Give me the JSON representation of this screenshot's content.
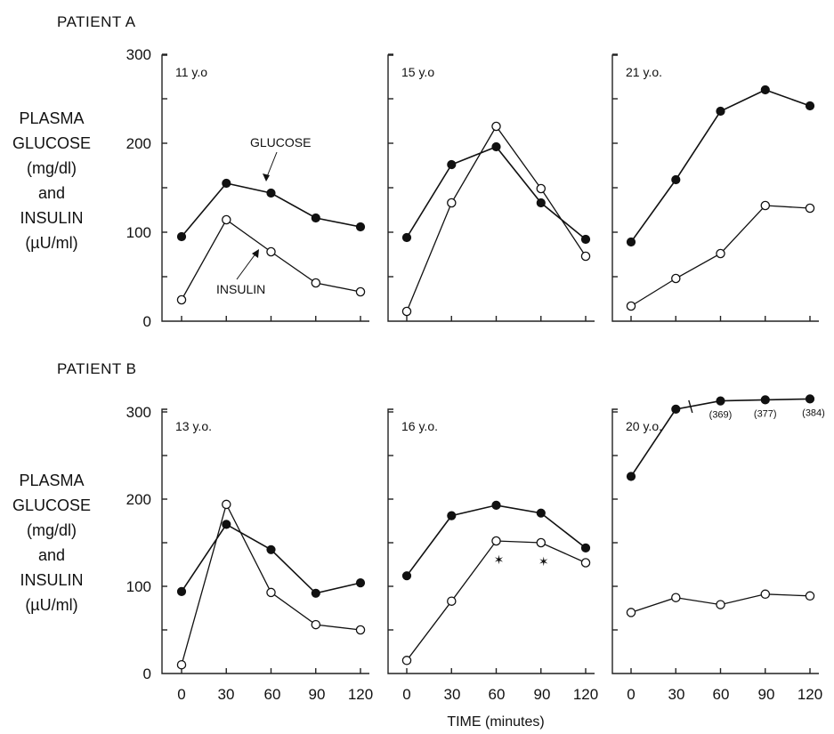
{
  "rows": [
    {
      "label": "PATIENT A",
      "ylabel_lines": [
        "PLASMA",
        "GLUCOSE",
        "(mg/dl)",
        "and",
        "INSULIN",
        "(µU/ml)"
      ],
      "yticks": [
        "0",
        "100",
        "200",
        "300"
      ]
    },
    {
      "label": "PATIENT B",
      "ylabel_lines": [
        "PLASMA",
        "GLUCOSE",
        "(mg/dl)",
        "and",
        "INSULIN",
        "(µU/ml)"
      ],
      "yticks": [
        "0",
        "100",
        "200",
        "300"
      ]
    }
  ],
  "xaxis": {
    "title": "TIME (minutes)",
    "ticks": [
      "0",
      "30",
      "60",
      "90",
      "120"
    ]
  },
  "annotations": {
    "glucose_label": "GLUCOSE",
    "insulin_label": "INSULIN",
    "significance_marker": "✶"
  },
  "chart_data": [
    {
      "type": "line",
      "row": 0,
      "col": 0,
      "age_label": "11 y.o",
      "x": [
        0,
        30,
        60,
        90,
        120
      ],
      "ylim": [
        0,
        300
      ],
      "xlim": [
        0,
        120
      ],
      "series": [
        {
          "name": "GLUCOSE",
          "marker": "filled",
          "values": [
            95,
            155,
            144,
            116,
            106
          ]
        },
        {
          "name": "INSULIN",
          "marker": "open",
          "values": [
            24,
            114,
            78,
            43,
            33
          ]
        }
      ]
    },
    {
      "type": "line",
      "row": 0,
      "col": 1,
      "age_label": "15 y.o",
      "x": [
        0,
        30,
        60,
        90,
        120
      ],
      "ylim": [
        0,
        300
      ],
      "xlim": [
        0,
        120
      ],
      "series": [
        {
          "name": "GLUCOSE",
          "marker": "filled",
          "values": [
            94,
            176,
            196,
            133,
            92
          ]
        },
        {
          "name": "INSULIN",
          "marker": "open",
          "values": [
            11,
            133,
            219,
            149,
            73
          ]
        }
      ]
    },
    {
      "type": "line",
      "row": 0,
      "col": 2,
      "age_label": "21 y.o.",
      "x": [
        0,
        30,
        60,
        90,
        120
      ],
      "ylim": [
        0,
        300
      ],
      "xlim": [
        0,
        120
      ],
      "series": [
        {
          "name": "GLUCOSE",
          "marker": "filled",
          "values": [
            89,
            159,
            236,
            260,
            242
          ]
        },
        {
          "name": "INSULIN",
          "marker": "open",
          "values": [
            17,
            48,
            76,
            130,
            127
          ]
        }
      ]
    },
    {
      "type": "line",
      "row": 1,
      "col": 0,
      "age_label": "13 y.o.",
      "x": [
        0,
        30,
        60,
        90,
        120
      ],
      "ylim": [
        0,
        300
      ],
      "xlim": [
        0,
        120
      ],
      "series": [
        {
          "name": "GLUCOSE",
          "marker": "filled",
          "values": [
            94,
            171,
            142,
            92,
            104
          ]
        },
        {
          "name": "INSULIN",
          "marker": "open",
          "values": [
            10,
            194,
            93,
            56,
            50
          ]
        }
      ]
    },
    {
      "type": "line",
      "row": 1,
      "col": 1,
      "age_label": "16 y.o.",
      "x": [
        0,
        30,
        60,
        90,
        120
      ],
      "ylim": [
        0,
        300
      ],
      "xlim": [
        0,
        120
      ],
      "series": [
        {
          "name": "GLUCOSE",
          "marker": "filled",
          "values": [
            112,
            181,
            193,
            184,
            144
          ]
        },
        {
          "name": "INSULIN",
          "marker": "open",
          "values": [
            15,
            83,
            152,
            150,
            127
          ]
        }
      ],
      "significance_x": [
        60,
        90
      ]
    },
    {
      "type": "line",
      "row": 1,
      "col": 2,
      "age_label": "20 y.o.",
      "x": [
        0,
        30,
        60,
        90,
        120
      ],
      "ylim": [
        0,
        300
      ],
      "xlim": [
        0,
        120
      ],
      "series": [
        {
          "name": "GLUCOSE",
          "marker": "filled",
          "values": [
            226,
            307,
            369,
            377,
            384
          ],
          "value_labels": [
            "",
            "",
            "(369)",
            "(377)",
            "(384)"
          ],
          "axis_break_after_x": 30
        },
        {
          "name": "INSULIN",
          "marker": "open",
          "values": [
            70,
            87,
            79,
            91,
            89
          ]
        }
      ]
    }
  ]
}
